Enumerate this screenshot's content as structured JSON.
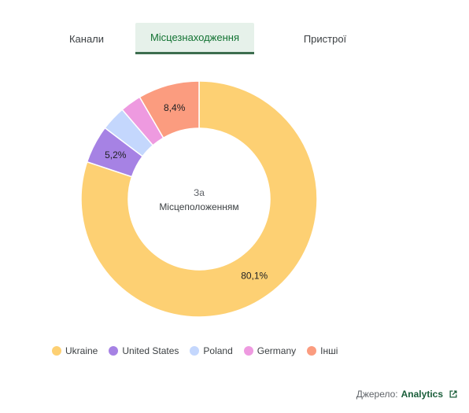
{
  "tabs": [
    {
      "label": "Канали",
      "active": false
    },
    {
      "label": "Місцезнаходження",
      "active": true
    },
    {
      "label": "Пристрої",
      "active": false
    }
  ],
  "center_label": {
    "line1": "За",
    "line2": "Місцеположенням"
  },
  "chart_data": {
    "type": "pie",
    "donut": true,
    "categories": [
      "Ukraine",
      "United States",
      "Poland",
      "Germany",
      "Інші"
    ],
    "values": [
      80.1,
      5.2,
      3.4,
      2.9,
      8.4
    ],
    "data_labels": [
      "80,1%",
      "5,2%",
      "",
      "",
      "8,4%"
    ],
    "colors": [
      "#fdd073",
      "#a682e4",
      "#c4d7fd",
      "#ee9ae0",
      "#fb9c7f"
    ],
    "legend_position": "bottom-left"
  },
  "source": {
    "prefix": "Джерело:",
    "link": "Analytics",
    "icon": "open-in-new-icon"
  }
}
